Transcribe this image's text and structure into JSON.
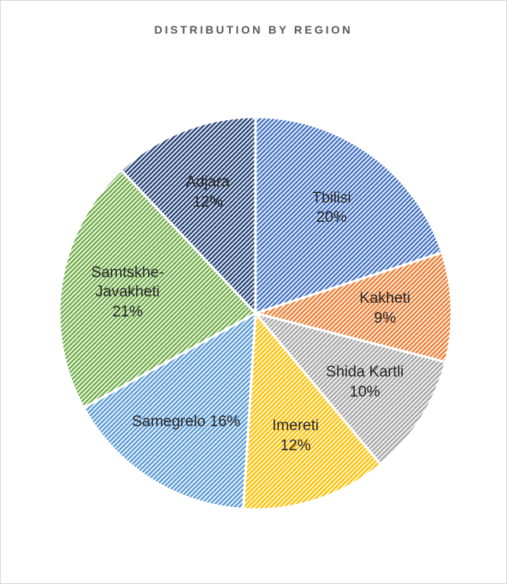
{
  "chart_data": {
    "type": "pie",
    "title": "DISTRIBUTION BY REGION",
    "categories": [
      "Tbilisi",
      "Kakheti",
      "Shida Kartli",
      "Imereti",
      "Samegrelo",
      "Samtskhe-Javakheti",
      "Adjara"
    ],
    "values": [
      20,
      9,
      10,
      12,
      16,
      21,
      12
    ],
    "value_labels": [
      "20%",
      "9%",
      "10%",
      "12%",
      "16%",
      "21%",
      "12%"
    ],
    "colors": [
      "#4472c4",
      "#ed7d31",
      "#a5a5a5",
      "#ffc000",
      "#5b9bd5",
      "#70ad47",
      "#264478"
    ]
  }
}
